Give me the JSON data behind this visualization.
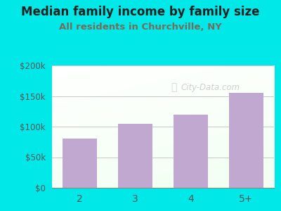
{
  "title": "Median family income by family size",
  "subtitle": "All residents in Churchville, NY",
  "categories": [
    "2",
    "3",
    "4",
    "5+"
  ],
  "values": [
    80000,
    105000,
    120000,
    155000
  ],
  "bar_color": "#c0a8d0",
  "title_color": "#222222",
  "subtitle_color": "#7a6a5a",
  "outer_bg": "#00e8e8",
  "ylim": [
    0,
    200000
  ],
  "yticks": [
    0,
    50000,
    100000,
    150000,
    200000
  ],
  "ytick_labels": [
    "$0",
    "$50k",
    "$100k",
    "$150k",
    "$200k"
  ],
  "watermark": "City-Data.com",
  "grid_color": "#bbbbbb",
  "tick_color": "#555555"
}
